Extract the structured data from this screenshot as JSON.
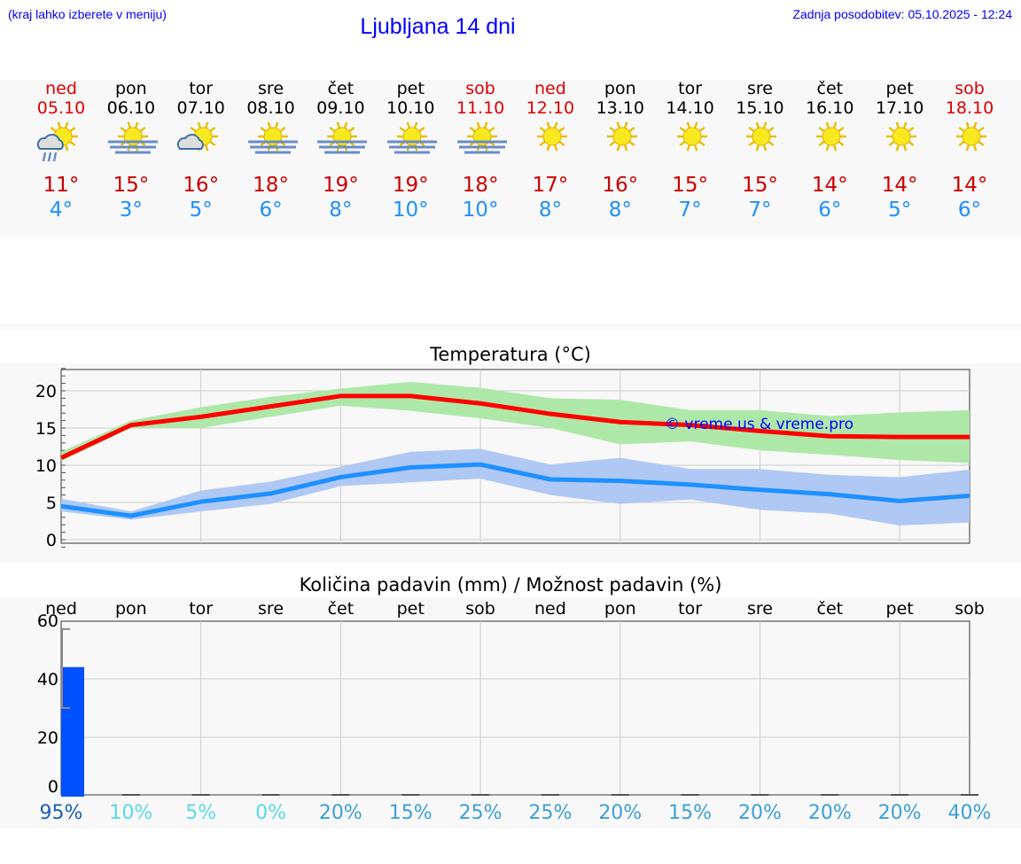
{
  "header": {
    "hint": "(kraj lahko izberete v meniju)",
    "title": "Ljubljana 14 dni",
    "updated": "Zadnja posodobitev: 05.10.2025 - 12:24"
  },
  "days": [
    {
      "name": "ned",
      "date": "05.10",
      "weekend": true,
      "icon": "sun-cloud-rain-icon",
      "max": "11°",
      "min": "4°"
    },
    {
      "name": "pon",
      "date": "06.10",
      "weekend": false,
      "icon": "sun-fog-icon",
      "max": "15°",
      "min": "3°"
    },
    {
      "name": "tor",
      "date": "07.10",
      "weekend": false,
      "icon": "sun-cloud-icon",
      "max": "16°",
      "min": "5°"
    },
    {
      "name": "sre",
      "date": "08.10",
      "weekend": false,
      "icon": "sun-fog-icon",
      "max": "18°",
      "min": "6°"
    },
    {
      "name": "čet",
      "date": "09.10",
      "weekend": false,
      "icon": "sun-fog-icon",
      "max": "19°",
      "min": "8°"
    },
    {
      "name": "pet",
      "date": "10.10",
      "weekend": false,
      "icon": "sun-fog-icon",
      "max": "19°",
      "min": "10°"
    },
    {
      "name": "sob",
      "date": "11.10",
      "weekend": true,
      "icon": "sun-fog-icon",
      "max": "18°",
      "min": "10°"
    },
    {
      "name": "ned",
      "date": "12.10",
      "weekend": true,
      "icon": "sun-icon",
      "max": "17°",
      "min": "8°"
    },
    {
      "name": "pon",
      "date": "13.10",
      "weekend": false,
      "icon": "sun-icon",
      "max": "16°",
      "min": "8°"
    },
    {
      "name": "tor",
      "date": "14.10",
      "weekend": false,
      "icon": "sun-icon",
      "max": "15°",
      "min": "7°"
    },
    {
      "name": "sre",
      "date": "15.10",
      "weekend": false,
      "icon": "sun-icon",
      "max": "15°",
      "min": "7°"
    },
    {
      "name": "čet",
      "date": "16.10",
      "weekend": false,
      "icon": "sun-icon",
      "max": "14°",
      "min": "6°"
    },
    {
      "name": "pet",
      "date": "17.10",
      "weekend": false,
      "icon": "sun-icon",
      "max": "14°",
      "min": "5°"
    },
    {
      "name": "sob",
      "date": "18.10",
      "weekend": true,
      "icon": "sun-icon",
      "max": "14°",
      "min": "6°"
    }
  ],
  "colors": {
    "weekend": "#dd0000",
    "max_line": "#ff0000",
    "max_band": "#aee8a8",
    "min_line": "#1e90ff",
    "min_band": "#b0c8f4",
    "precip_bar": "#0050ff"
  },
  "chart_data": [
    {
      "type": "line",
      "title": "Temperatura (°C)",
      "watermark": "© vreme.us & vreme.pro",
      "categories": [
        "05.10",
        "06.10",
        "07.10",
        "08.10",
        "09.10",
        "10.10",
        "11.10",
        "12.10",
        "13.10",
        "14.10",
        "15.10",
        "16.10",
        "17.10",
        "18.10"
      ],
      "ylim": [
        -1,
        23
      ],
      "yticks": [
        "0",
        "5",
        "10",
        "15",
        "20"
      ],
      "grid": true,
      "series": [
        {
          "values": [
            11,
            15.4,
            16.5,
            17.9,
            19.3,
            19.3,
            18.3,
            16.9,
            15.8,
            15.4,
            14.6,
            13.9,
            13.8,
            13.8
          ],
          "low": [
            10.5,
            15,
            15,
            16.5,
            18,
            17.3,
            16.3,
            15,
            12.8,
            13.2,
            12,
            11.4,
            10.7,
            10.3
          ],
          "high": [
            11.8,
            16,
            17.8,
            19.2,
            20.3,
            21.2,
            20.4,
            19,
            18.8,
            17.4,
            17.4,
            16.6,
            17.1,
            17.4
          ]
        },
        {
          "values": [
            4.5,
            3.2,
            5.1,
            6.2,
            8.4,
            9.7,
            10.1,
            8.1,
            7.9,
            7.4,
            6.7,
            6.1,
            5.2,
            5.9
          ],
          "low": [
            3.8,
            2.7,
            3.8,
            4.8,
            7.2,
            7.7,
            8.2,
            6,
            4.8,
            5.4,
            4,
            3.5,
            1.9,
            2.3
          ],
          "high": [
            5.5,
            3.8,
            6.6,
            7.8,
            9.8,
            11.8,
            12.2,
            10.1,
            11,
            9.5,
            9.5,
            8.7,
            8.4,
            9.4
          ]
        }
      ]
    },
    {
      "type": "bar",
      "title": "Količina padavin (mm) / Možnost padavin (%)",
      "categories": [
        "ned",
        "pon",
        "tor",
        "sre",
        "čet",
        "pet",
        "sob",
        "ned",
        "pon",
        "tor",
        "sre",
        "čet",
        "pet",
        "sob"
      ],
      "ylim": [
        -4,
        60
      ],
      "yticks": [
        "0",
        "20",
        "40",
        "60"
      ],
      "grid": true,
      "values": [
        44,
        0,
        0,
        0,
        0,
        0,
        0,
        0,
        0,
        0,
        0,
        0,
        0,
        0
      ],
      "error_low": [
        30,
        0,
        0,
        0,
        0,
        0,
        0,
        0,
        0,
        0,
        0,
        0,
        0,
        0
      ],
      "error_high": [
        57,
        0,
        0,
        0,
        0,
        0,
        0,
        0,
        0,
        0,
        0,
        0,
        0,
        0
      ],
      "chance": [
        "95%",
        "10%",
        "5%",
        "0%",
        "20%",
        "15%",
        "25%",
        "25%",
        "20%",
        "15%",
        "20%",
        "20%",
        "20%",
        "40%"
      ],
      "chance_colors": [
        "#1a5fb4",
        "#5ad8e8",
        "#5ad8e8",
        "#5ad8e8",
        "#3ca0d8",
        "#3ca0d8",
        "#3ca0d8",
        "#3ca0d8",
        "#3ca0d8",
        "#3ca0d8",
        "#3ca0d8",
        "#3ca0d8",
        "#3ca0d8",
        "#3ca0d8"
      ]
    }
  ]
}
